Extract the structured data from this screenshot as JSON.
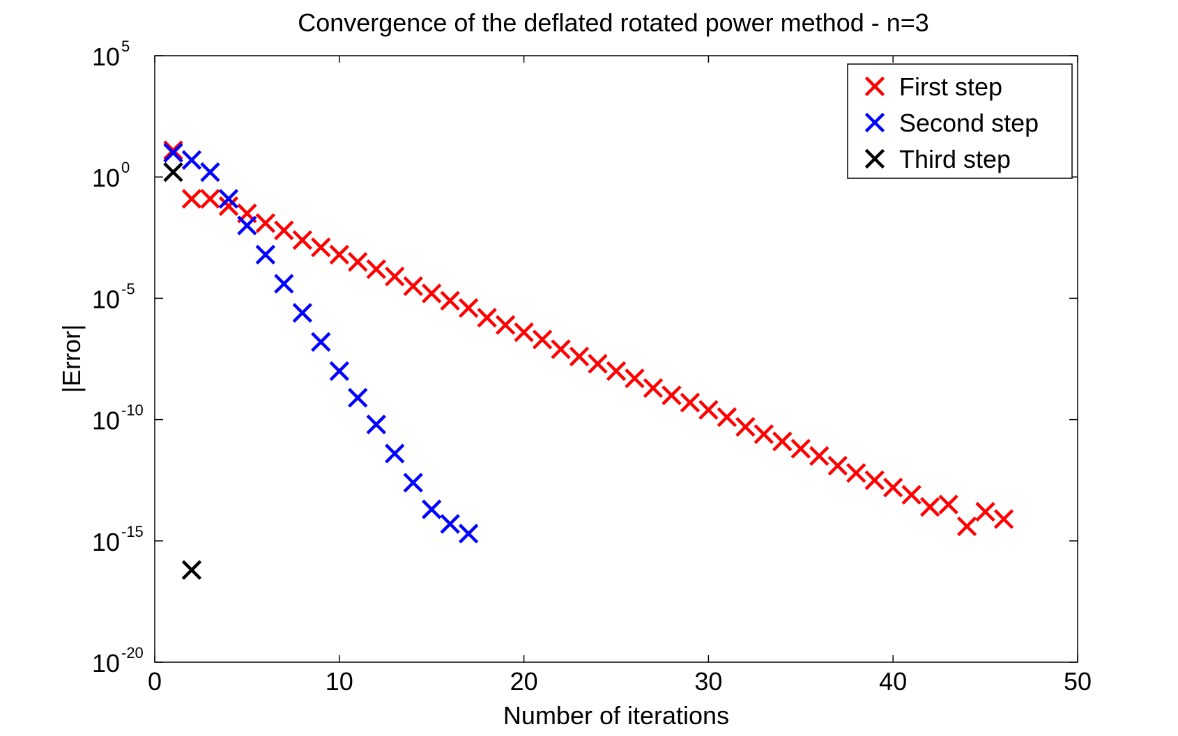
{
  "chart_data": {
    "type": "scatter",
    "title": "Convergence of the deflated rotated power method - n=3",
    "xlabel": "Number of iterations",
    "ylabel": "|Error|",
    "xlim": [
      0,
      50
    ],
    "ylim_exponent": [
      -20,
      5
    ],
    "y_scale": "log",
    "grid": false,
    "legend_position": "top-right",
    "x_ticks": [
      "0",
      "10",
      "20",
      "30",
      "40",
      "50"
    ],
    "y_ticks": [
      {
        "base": "10",
        "exp": "5",
        "exponent_value": 5
      },
      {
        "base": "10",
        "exp": "0",
        "exponent_value": 0
      },
      {
        "base": "10",
        "exp": "-5",
        "exponent_value": -5
      },
      {
        "base": "10",
        "exp": "-10",
        "exponent_value": -10
      },
      {
        "base": "10",
        "exp": "-15",
        "exponent_value": -15
      },
      {
        "base": "10",
        "exp": "-20",
        "exponent_value": -20
      }
    ],
    "series": [
      {
        "name": "First step",
        "color": "#ff0000",
        "marker": "x",
        "x": [
          1,
          2,
          3,
          4,
          5,
          6,
          7,
          8,
          9,
          10,
          11,
          12,
          13,
          14,
          15,
          16,
          17,
          18,
          19,
          20,
          21,
          22,
          23,
          24,
          25,
          26,
          27,
          28,
          29,
          30,
          31,
          32,
          33,
          34,
          35,
          36,
          37,
          38,
          39,
          40,
          41,
          42,
          43,
          44,
          45,
          46
        ],
        "log10_y": [
          1.1,
          -0.9,
          -0.9,
          -1.2,
          -1.5,
          -1.9,
          -2.2,
          -2.6,
          -2.9,
          -3.2,
          -3.5,
          -3.8,
          -4.1,
          -4.5,
          -4.8,
          -5.1,
          -5.4,
          -5.8,
          -6.1,
          -6.4,
          -6.7,
          -7.1,
          -7.4,
          -7.7,
          -8.0,
          -8.3,
          -8.7,
          -9.0,
          -9.3,
          -9.6,
          -9.9,
          -10.3,
          -10.6,
          -10.9,
          -11.2,
          -11.5,
          -11.9,
          -12.2,
          -12.5,
          -12.8,
          -13.1,
          -13.6,
          -13.5,
          -14.4,
          -13.8,
          -14.1
        ]
      },
      {
        "name": "Second step",
        "color": "#0000ff",
        "marker": "x",
        "x": [
          1,
          2,
          3,
          4,
          5,
          6,
          7,
          8,
          9,
          10,
          11,
          12,
          13,
          14,
          15,
          16,
          17
        ],
        "log10_y": [
          1.0,
          0.7,
          0.2,
          -0.9,
          -2.0,
          -3.2,
          -4.4,
          -5.6,
          -6.8,
          -8.0,
          -9.1,
          -10.2,
          -11.4,
          -12.6,
          -13.7,
          -14.3,
          -14.7
        ]
      },
      {
        "name": "Third step",
        "color": "#000000",
        "marker": "x",
        "x": [
          1,
          2
        ],
        "log10_y": [
          0.2,
          -16.2
        ]
      }
    ]
  }
}
